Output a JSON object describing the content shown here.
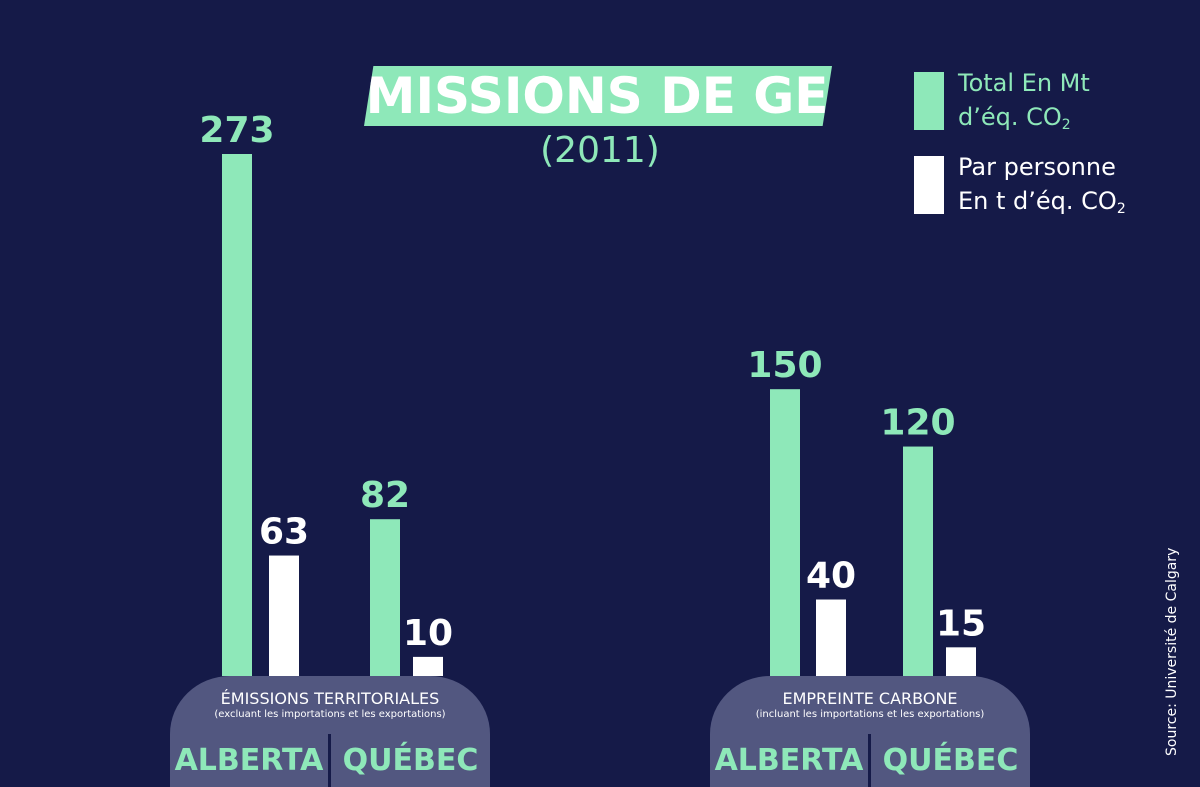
{
  "title": "ÉMISSIONS DE GES",
  "subtitle": "(2011)",
  "colors": {
    "background": "#151a48",
    "total": "#8ee8b9",
    "per_person": "#ffffff",
    "base": "#525780"
  },
  "legend": {
    "total": {
      "line1": "Total En Mt",
      "line2_prefix": "d’éq. CO",
      "line2_sub": "2"
    },
    "per_person": {
      "line1": "Par personne",
      "line2_prefix": "En t d’éq. CO",
      "line2_sub": "2"
    }
  },
  "groups": {
    "territorial": {
      "title": "ÉMISSIONS TERRITORIALES",
      "subtitle": "(excluant les  importations et les exportations)"
    },
    "footprint": {
      "title": "EMPREINTE CARBONE",
      "subtitle": "(incluant les importations et les exportations)"
    }
  },
  "categories": {
    "territorial": [
      "ALBERTA",
      "QUÉBEC"
    ],
    "footprint": [
      "ALBERTA",
      "QUÉBEC"
    ]
  },
  "source": "Source: Université de Calgary",
  "chart_data": {
    "type": "bar",
    "title": "ÉMISSIONS DE GES",
    "subtitle": "(2011)",
    "groups": [
      "ÉMISSIONS TERRITORIALES",
      "EMPREINTE CARBONE"
    ],
    "categories": [
      "ALBERTA",
      "QUÉBEC",
      "ALBERTA",
      "QUÉBEC"
    ],
    "series": [
      {
        "name": "Total En Mt d’éq. CO2",
        "color": "#8ee8b9",
        "values": [
          273,
          82,
          150,
          120
        ]
      },
      {
        "name": "Par personne En t d’éq. CO2",
        "color": "#ffffff",
        "values": [
          63,
          10,
          40,
          15
        ]
      }
    ],
    "data_labels": true,
    "legend": "top-right",
    "grid": false
  }
}
